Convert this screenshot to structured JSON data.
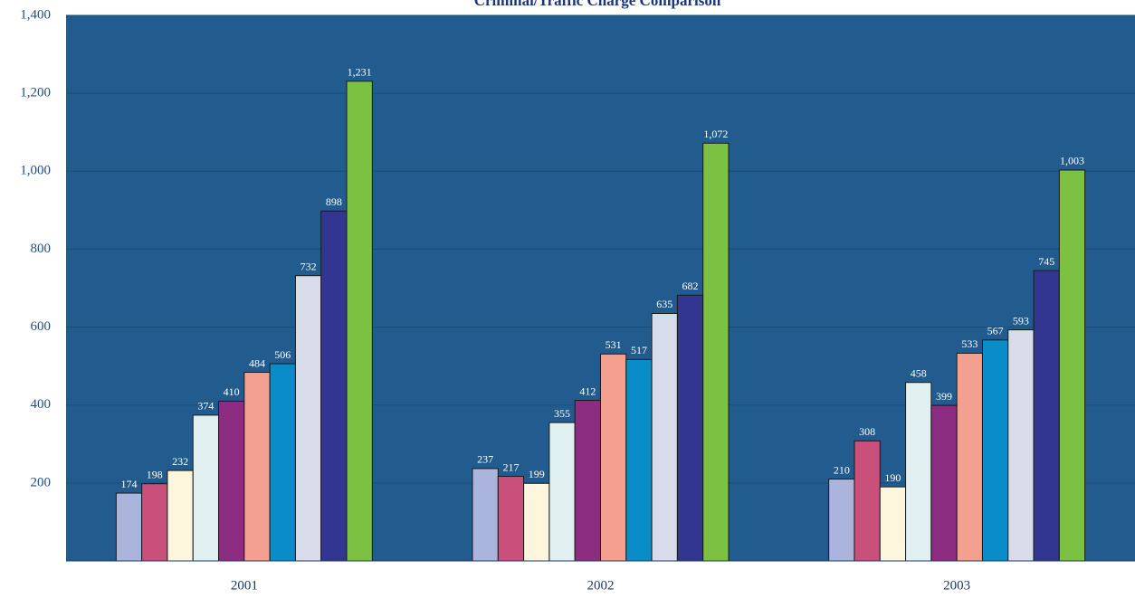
{
  "chart_data": {
    "type": "bar",
    "title": "Criminal/Traffic Charge Comparison",
    "categories": [
      "2001",
      "2002",
      "2003"
    ],
    "ylim": [
      0,
      1400
    ],
    "yticks": [
      200,
      400,
      600,
      800,
      {
        "value": 1000,
        "label": "1,000"
      },
      {
        "value": 1200,
        "label": "1,200"
      },
      {
        "value": 1400,
        "label": "1,400"
      }
    ],
    "grid": true,
    "series": [
      {
        "color": "#aab4dc",
        "values": [
          174,
          237,
          210
        ],
        "value_labels": [
          "174",
          "237",
          "210"
        ]
      },
      {
        "color": "#c8507a",
        "values": [
          198,
          217,
          308
        ],
        "value_labels": [
          "198",
          "217",
          "308"
        ]
      },
      {
        "color": "#fdf5dc",
        "values": [
          232,
          199,
          190
        ],
        "value_labels": [
          "232",
          "199",
          "190"
        ]
      },
      {
        "color": "#e0f0f0",
        "values": [
          374,
          355,
          458
        ],
        "value_labels": [
          "374",
          "355",
          "458"
        ]
      },
      {
        "color": "#8c2d82",
        "values": [
          410,
          412,
          399
        ],
        "value_labels": [
          "410",
          "412",
          "399"
        ]
      },
      {
        "color": "#f4a090",
        "values": [
          484,
          531,
          533
        ],
        "value_labels": [
          "484",
          "531",
          "533"
        ]
      },
      {
        "color": "#0a8cc8",
        "values": [
          506,
          517,
          567
        ],
        "value_labels": [
          "506",
          "517",
          "567"
        ]
      },
      {
        "color": "#d8dcea",
        "values": [
          732,
          635,
          593
        ],
        "value_labels": [
          "732",
          "635",
          "593"
        ]
      },
      {
        "color": "#323690",
        "values": [
          898,
          682,
          745
        ],
        "value_labels": [
          "898",
          "682",
          "745"
        ]
      },
      {
        "color": "#7dc142",
        "values": [
          1231,
          1072,
          1003
        ],
        "value_labels": [
          "1,231",
          "1,072",
          "1,003"
        ]
      }
    ]
  }
}
